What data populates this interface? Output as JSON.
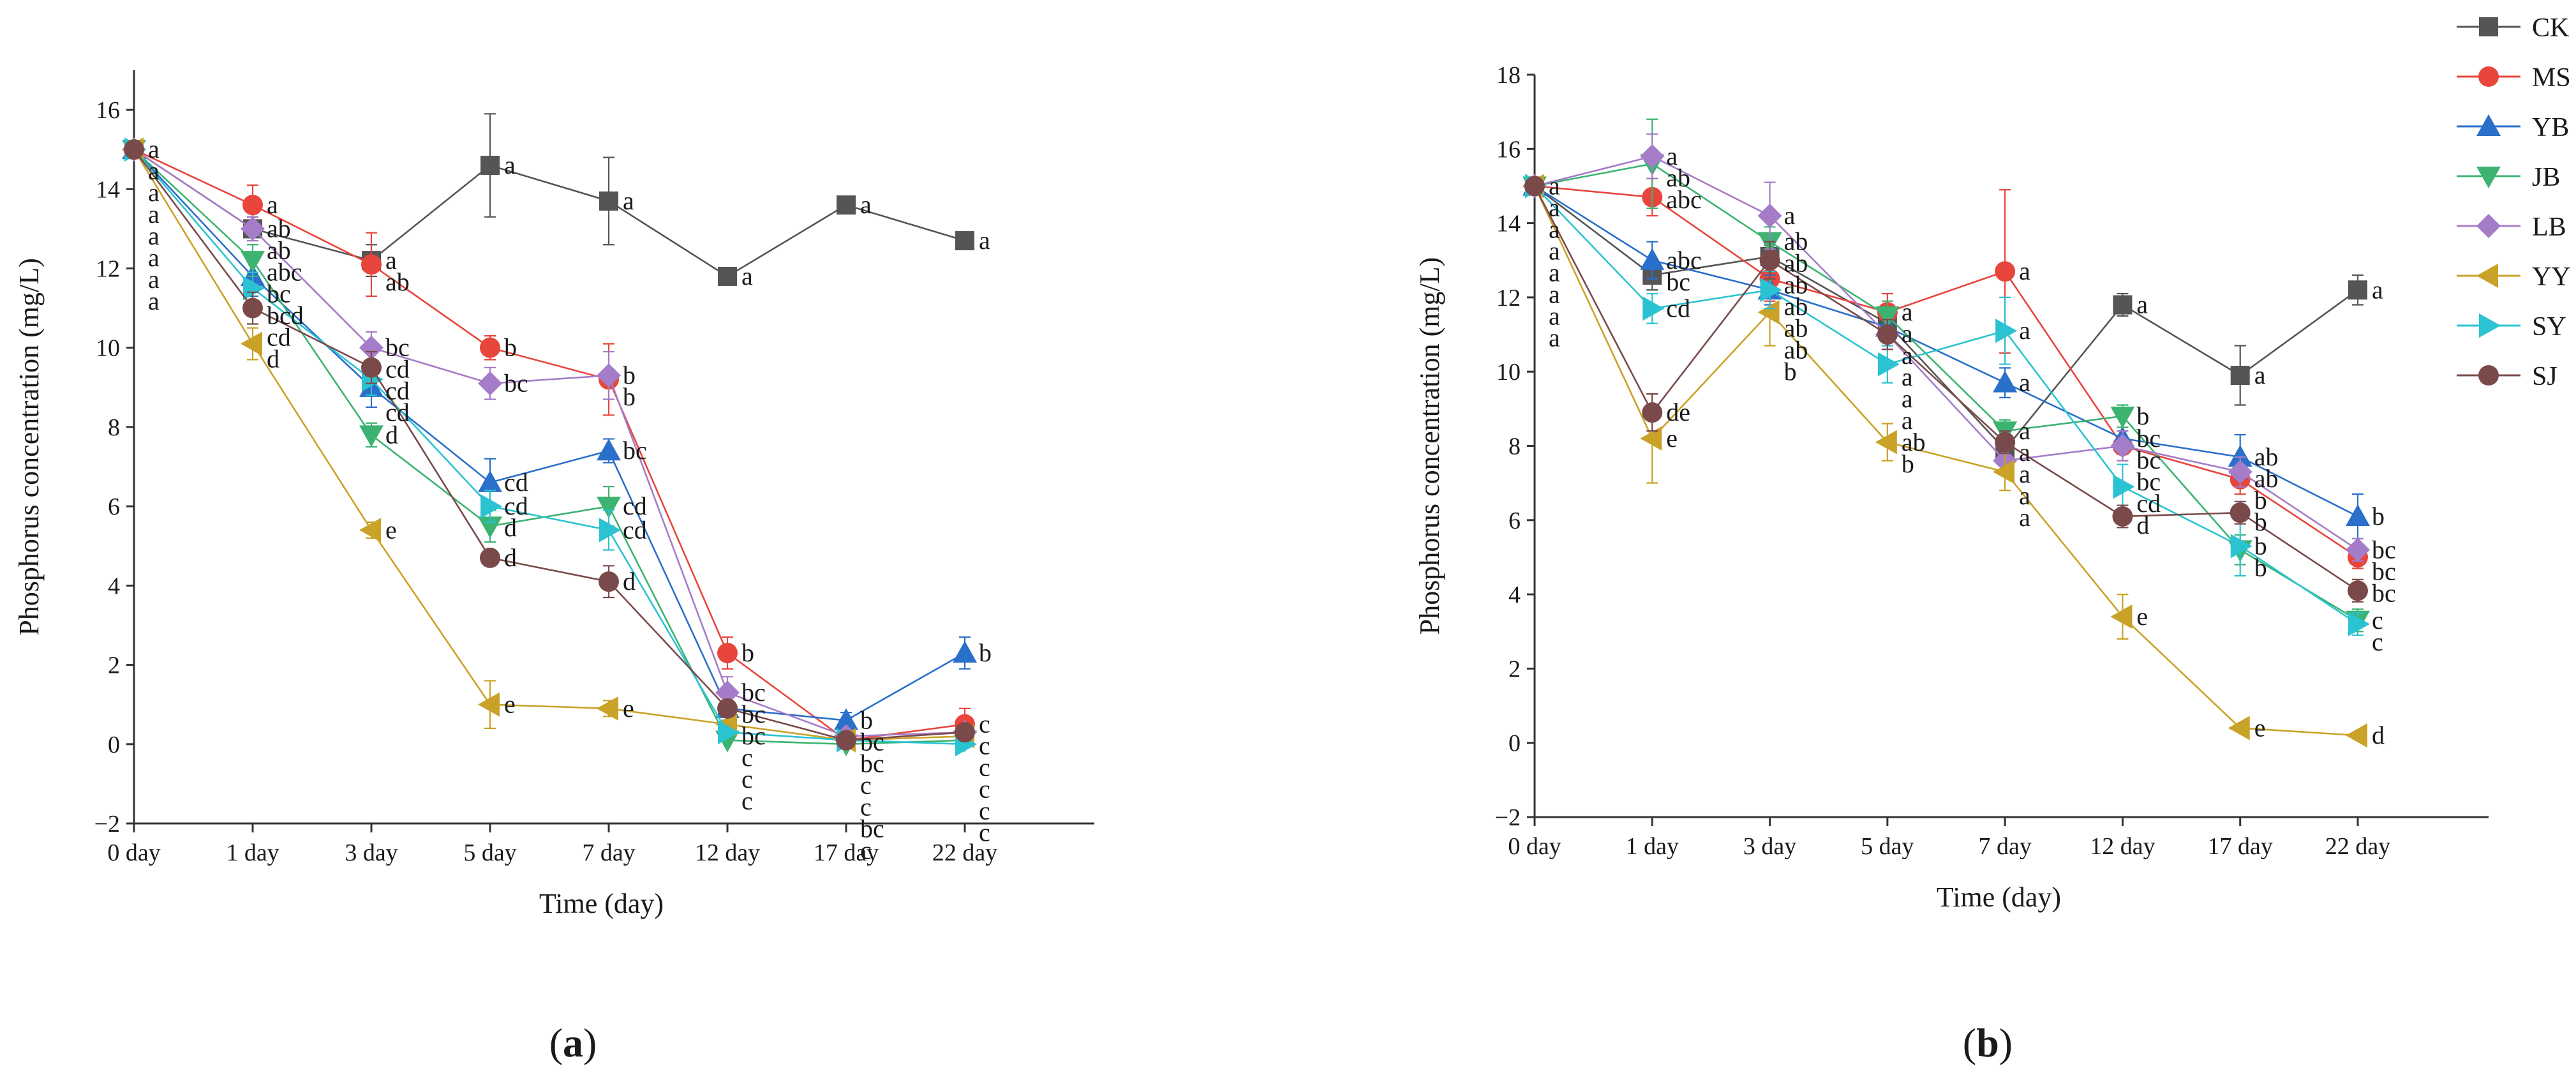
{
  "figure": {
    "panel_a_label": "a",
    "panel_b_label": "b"
  },
  "series_styles": [
    {
      "name": "CK",
      "color": "#555555",
      "marker": "square"
    },
    {
      "name": "MS",
      "color": "#e8453c",
      "marker": "circle"
    },
    {
      "name": "YB",
      "color": "#2a6fc9",
      "marker": "triangle-up"
    },
    {
      "name": "JB",
      "color": "#3cb371",
      "marker": "triangle-down"
    },
    {
      "name": "LB",
      "color": "#a57cc8",
      "marker": "diamond"
    },
    {
      "name": "YY",
      "color": "#c9a227",
      "marker": "triangle-left"
    },
    {
      "name": "SY",
      "color": "#2bc3d1",
      "marker": "triangle-right"
    },
    {
      "name": "SJ",
      "color": "#7a4a4a",
      "marker": "circle"
    }
  ],
  "legend": {
    "entries": [
      "CK",
      "MS",
      "YB",
      "JB",
      "LB",
      "YY",
      "SY",
      "SJ"
    ]
  },
  "chart_data": [
    {
      "type": "line",
      "panel": "a",
      "title": "",
      "xlabel": "Time (day)",
      "ylabel": "Phosphorus concentration (mg/L)",
      "categories": [
        "0 day",
        "1 day",
        "3 day",
        "5 day",
        "7 day",
        "12 day",
        "17 day",
        "22 day"
      ],
      "ylim": [
        -2,
        17
      ],
      "yticks": [
        -2,
        0,
        2,
        4,
        6,
        8,
        10,
        12,
        14,
        16
      ],
      "series": [
        {
          "name": "CK",
          "values": [
            15.0,
            13.0,
            12.2,
            14.6,
            13.7,
            11.8,
            13.6,
            12.7
          ],
          "errors": [
            0.2,
            0.3,
            0.4,
            1.3,
            1.1,
            0.1,
            0.1,
            0.1
          ],
          "labels": [
            "a",
            "ab",
            "a",
            "a",
            "a",
            "a",
            "a",
            "a"
          ]
        },
        {
          "name": "MS",
          "values": [
            15.0,
            13.6,
            12.1,
            10.0,
            9.2,
            2.3,
            0.1,
            0.5
          ],
          "errors": [
            0.2,
            0.5,
            0.8,
            0.3,
            0.9,
            0.4,
            0.1,
            0.4
          ],
          "labels": [
            "a",
            "a",
            "ab",
            "b",
            "b",
            "b",
            "bc",
            "c"
          ]
        },
        {
          "name": "YB",
          "values": [
            15.0,
            11.8,
            9.0,
            6.6,
            7.4,
            0.9,
            0.6,
            2.3
          ],
          "errors": [
            0.2,
            0.5,
            0.5,
            0.6,
            0.3,
            0.3,
            0.2,
            0.4
          ],
          "labels": [
            "a",
            "bc",
            "cd",
            "cd",
            "bc",
            "bc",
            "b",
            "b"
          ]
        },
        {
          "name": "JB",
          "values": [
            15.0,
            12.2,
            7.8,
            5.5,
            6.0,
            0.1,
            0.0,
            0.1
          ],
          "errors": [
            0.2,
            0.4,
            0.3,
            0.4,
            0.5,
            0.1,
            0.1,
            0.1
          ],
          "labels": [
            "a",
            "abc",
            "d",
            "d",
            "cd",
            "c",
            "c",
            "c"
          ]
        },
        {
          "name": "LB",
          "values": [
            15.0,
            13.0,
            10.0,
            9.1,
            9.3,
            1.3,
            0.2,
            0.3
          ],
          "errors": [
            0.2,
            0.3,
            0.4,
            0.4,
            0.6,
            0.4,
            0.1,
            0.2
          ],
          "labels": [
            "a",
            "ab",
            "bc",
            "bc",
            "b",
            "bc",
            "bc",
            "c"
          ]
        },
        {
          "name": "YY",
          "values": [
            15.0,
            10.1,
            5.4,
            1.0,
            0.9,
            0.5,
            0.1,
            0.2
          ],
          "errors": [
            0.2,
            0.4,
            0.2,
            0.6,
            0.2,
            0.1,
            0.1,
            0.1
          ],
          "labels": [
            "a",
            "d",
            "e",
            "e",
            "e",
            "c",
            "c",
            "c"
          ]
        },
        {
          "name": "SY",
          "values": [
            15.0,
            11.5,
            9.2,
            6.0,
            5.4,
            0.3,
            0.1,
            0.0
          ],
          "errors": [
            0.2,
            0.4,
            0.4,
            0.4,
            0.5,
            0.1,
            0.1,
            0.1
          ],
          "labels": [
            "a",
            "bcd",
            "cd",
            "cd",
            "cd",
            "c",
            "c",
            "c"
          ]
        },
        {
          "name": "SJ",
          "values": [
            15.0,
            11.0,
            9.5,
            4.7,
            4.1,
            0.9,
            0.1,
            0.3
          ],
          "errors": [
            0.2,
            0.4,
            0.4,
            0.2,
            0.4,
            0.2,
            0.1,
            0.1
          ],
          "labels": [
            "a",
            "cd",
            "cd",
            "d",
            "d",
            "bc",
            "bc",
            "c"
          ]
        }
      ]
    },
    {
      "type": "line",
      "panel": "b",
      "title": "",
      "xlabel": "Time (day)",
      "ylabel": "Phosphorus concentration (mg/L)",
      "categories": [
        "0 day",
        "1 day",
        "3 day",
        "5 day",
        "7 day",
        "12 day",
        "17 day",
        "22 day"
      ],
      "ylim": [
        -2,
        18
      ],
      "yticks": [
        -2,
        0,
        2,
        4,
        6,
        8,
        10,
        12,
        14,
        16,
        18
      ],
      "series": [
        {
          "name": "CK",
          "values": [
            15.0,
            12.6,
            13.1,
            11.3,
            7.9,
            11.8,
            9.9,
            12.2
          ],
          "errors": [
            0.2,
            0.4,
            0.3,
            0.5,
            0.3,
            0.3,
            0.8,
            0.4
          ],
          "labels": [
            "a",
            "bc",
            "ab",
            "a",
            "a",
            "a",
            "a",
            "a"
          ]
        },
        {
          "name": "MS",
          "values": [
            15.0,
            14.7,
            12.5,
            11.6,
            12.7,
            8.0,
            7.1,
            5.0
          ],
          "errors": [
            0.2,
            0.5,
            0.6,
            0.5,
            2.2,
            0.4,
            0.4,
            0.3
          ],
          "labels": [
            "a",
            "abc",
            "ab",
            "a",
            "a",
            "bc",
            "b",
            "bc"
          ]
        },
        {
          "name": "YB",
          "values": [
            15.0,
            13.0,
            12.2,
            11.2,
            9.7,
            8.2,
            7.7,
            6.1
          ],
          "errors": [
            0.2,
            0.5,
            0.4,
            0.5,
            0.4,
            0.3,
            0.6,
            0.6
          ],
          "labels": [
            "a",
            "abc",
            "ab",
            "a",
            "a",
            "bc",
            "ab",
            "b"
          ]
        },
        {
          "name": "JB",
          "values": [
            15.0,
            15.6,
            13.5,
            11.5,
            8.4,
            8.8,
            5.2,
            3.3
          ],
          "errors": [
            0.2,
            1.2,
            0.4,
            0.4,
            0.3,
            0.3,
            0.4,
            0.3
          ],
          "labels": [
            "a",
            "ab",
            "ab",
            "a",
            "a",
            "b",
            "b",
            "c"
          ]
        },
        {
          "name": "LB",
          "values": [
            15.0,
            15.8,
            14.2,
            11.0,
            7.6,
            8.0,
            7.3,
            5.2
          ],
          "errors": [
            0.2,
            0.6,
            0.9,
            0.4,
            0.3,
            0.4,
            0.4,
            0.3
          ],
          "labels": [
            "a",
            "a",
            "a",
            "a",
            "a",
            "bc",
            "ab",
            "bc"
          ]
        },
        {
          "name": "YY",
          "values": [
            15.0,
            8.2,
            11.6,
            8.1,
            7.3,
            3.4,
            0.4,
            0.2
          ],
          "errors": [
            0.2,
            1.2,
            0.9,
            0.5,
            0.5,
            0.6,
            0.1,
            0.1
          ],
          "labels": [
            "a",
            "e",
            "b",
            "b",
            "a",
            "e",
            "e",
            "d"
          ]
        },
        {
          "name": "SY",
          "values": [
            15.0,
            11.7,
            12.2,
            10.2,
            11.1,
            6.9,
            5.3,
            3.2
          ],
          "errors": [
            0.2,
            0.4,
            0.5,
            0.5,
            0.9,
            0.6,
            0.8,
            0.3
          ],
          "labels": [
            "a",
            "cd",
            "ab",
            "ab",
            "a",
            "cd",
            "b",
            "c"
          ]
        },
        {
          "name": "SJ",
          "values": [
            15.0,
            8.9,
            13.0,
            11.0,
            8.1,
            6.1,
            6.2,
            4.1
          ],
          "errors": [
            0.2,
            0.5,
            0.5,
            0.4,
            0.3,
            0.3,
            0.3,
            0.3
          ],
          "labels": [
            "a",
            "de",
            "ab",
            "a",
            "a",
            "d",
            "b",
            "bc"
          ]
        }
      ]
    }
  ]
}
